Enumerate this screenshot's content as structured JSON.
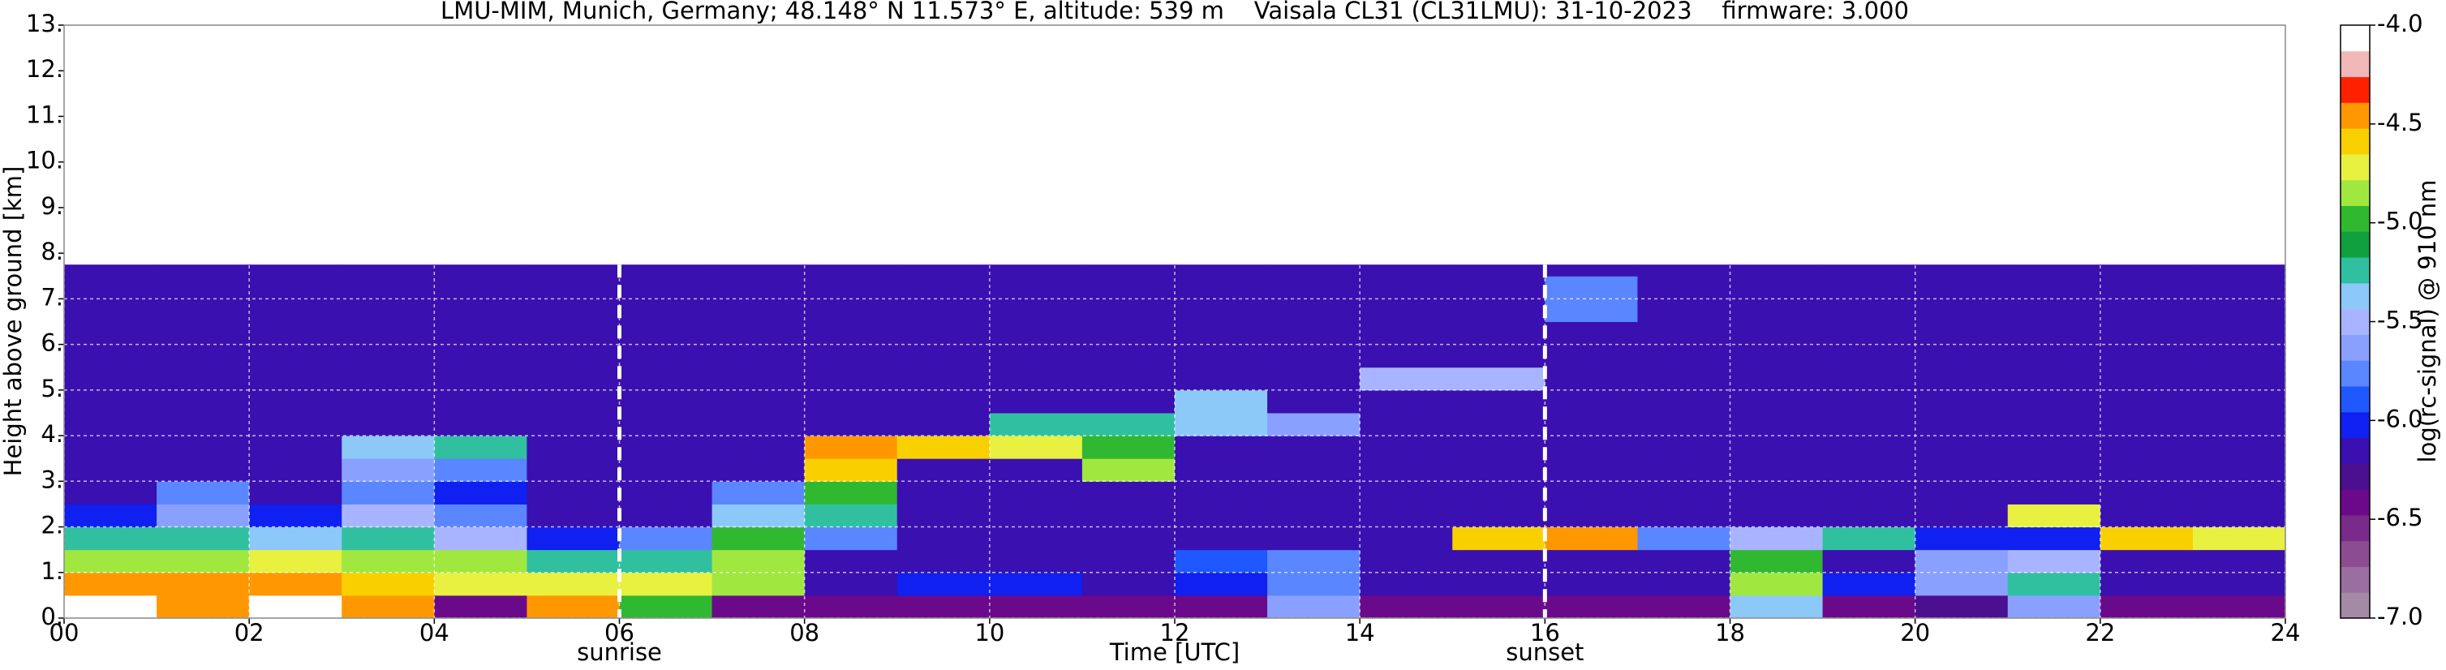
{
  "chart_data": {
    "type": "heatmap",
    "title": "LMU-MIM, Munich, Germany; 48.148° N 11.573° E, altitude: 539 m    Vaisala CL31 (CL31LMU): 31-10-2023    firmware: 3.000",
    "xlabel": "Time [UTC]",
    "ylabel": "Height above ground [km]",
    "colorbar_label": "log(rc-signal) @ 910 nm",
    "xlim": [
      0,
      24
    ],
    "xticks": [
      {
        "value": 0,
        "label": "00"
      },
      {
        "value": 2,
        "label": "02"
      },
      {
        "value": 4,
        "label": "04"
      },
      {
        "value": 6,
        "label": "06"
      },
      {
        "value": 8,
        "label": "08"
      },
      10,
      12,
      14,
      16,
      18,
      20,
      22,
      24
    ],
    "ylim": [
      0,
      13
    ],
    "yticks": [
      {
        "value": 0,
        "label": "0."
      },
      {
        "value": 1,
        "label": "1."
      },
      {
        "value": 2,
        "label": "2."
      },
      {
        "value": 3,
        "label": "3."
      },
      {
        "value": 4,
        "label": "4."
      },
      {
        "value": 5,
        "label": "5."
      },
      {
        "value": 6,
        "label": "6."
      },
      {
        "value": 7,
        "label": "7."
      },
      {
        "value": 8,
        "label": "8."
      },
      {
        "value": 9,
        "label": "9."
      },
      {
        "value": 10,
        "label": "10."
      },
      {
        "value": 11,
        "label": "11."
      },
      {
        "value": 12,
        "label": "12."
      },
      {
        "value": 13,
        "label": "13."
      }
    ],
    "zlim": [
      -7,
      -4
    ],
    "zticks": [
      {
        "value": -4,
        "label": "-4.0"
      },
      {
        "value": -4.5,
        "label": "-4.5"
      },
      {
        "value": -5,
        "label": "-5.0"
      },
      {
        "value": -5.5,
        "label": "-5.5"
      },
      {
        "value": -6,
        "label": "-6.0"
      },
      {
        "value": -6.5,
        "label": "-6.5"
      },
      {
        "value": -7,
        "label": "-7.0"
      }
    ],
    "colormap": [
      "#a48aa6",
      "#9a6e9e",
      "#8b4c92",
      "#7a2a88",
      "#6a0a8a",
      "#4a1090",
      "#3a10b0",
      "#1020f0",
      "#2058ff",
      "#5a86ff",
      "#8aa0ff",
      "#a8b4ff",
      "#8cc8f8",
      "#30c0a0",
      "#10a040",
      "#30b830",
      "#a0e840",
      "#e8f040",
      "#f8d000",
      "#ff9800",
      "#ff2000",
      "#f0b8b8",
      "#ffffff"
    ],
    "grid": true,
    "annotations": [
      {
        "text": "sunrise",
        "x": 6
      },
      {
        "text": "sunset",
        "x": 16
      }
    ],
    "x_edges": [
      0,
      1,
      2,
      3,
      4,
      5,
      6,
      7,
      8,
      9,
      10,
      11,
      12,
      13,
      14,
      15,
      16,
      17,
      18,
      19,
      20,
      21,
      22,
      23,
      24
    ],
    "y_edges": [
      0,
      0.5,
      1,
      1.5,
      2,
      2.5,
      3,
      3.5,
      4,
      4.5,
      5,
      5.5,
      6,
      6.5,
      7,
      7.5,
      7.75
    ],
    "z": [
      [
        -4.1,
        -4.4,
        -4.1,
        -4.4,
        -6.4,
        -4.5,
        -5.0,
        -6.4,
        -6.4,
        -6.4,
        -6.4,
        -6.4,
        -6.4,
        -5.6,
        -6.4,
        -6.4,
        -6.4,
        -6.4,
        -5.4,
        -6.4,
        -6.3,
        -5.6,
        -6.4,
        -6.4
      ],
      [
        -4.4,
        -4.5,
        -4.5,
        -4.6,
        -4.7,
        -4.7,
        -4.7,
        -4.8,
        -6.1,
        -6.0,
        -6.0,
        -6.1,
        -6.0,
        -5.7,
        -6.1,
        -6.1,
        -6.1,
        -6.1,
        -4.9,
        -6.0,
        -5.6,
        -5.2,
        -6.1,
        -6.1
      ],
      [
        -4.8,
        -4.8,
        -4.7,
        -4.9,
        -4.9,
        -5.3,
        -5.2,
        -4.9,
        -6.2,
        -6.1,
        -6.2,
        -6.2,
        -5.9,
        -5.8,
        -6.2,
        -6.2,
        -6.2,
        -6.2,
        -5.0,
        -6.2,
        -5.6,
        -5.5,
        -6.2,
        -6.2
      ],
      [
        -5.3,
        -5.2,
        -5.4,
        -5.2,
        -5.5,
        -6.0,
        -5.8,
        -5.0,
        -5.8,
        -6.1,
        -6.2,
        -6.2,
        -6.2,
        -6.2,
        -6.2,
        -4.6,
        -4.5,
        -5.8,
        -5.5,
        -5.3,
        -6.0,
        -6.0,
        -4.6,
        -4.7
      ],
      [
        -6.0,
        -5.6,
        -6.0,
        -5.5,
        -5.8,
        -6.2,
        -6.2,
        -5.4,
        -5.2,
        -6.2,
        -6.2,
        -6.2,
        -6.2,
        -6.2,
        -6.2,
        -6.2,
        -6.2,
        -6.2,
        -6.2,
        -6.2,
        -6.2,
        -4.7,
        -6.2,
        -6.2
      ],
      [
        -6.2,
        -5.8,
        -6.2,
        -5.8,
        -6.0,
        -6.2,
        -6.2,
        -5.8,
        -5.0,
        -6.2,
        -6.2,
        -6.2,
        -6.2,
        -6.2,
        -6.2,
        -6.2,
        -6.2,
        -6.2,
        -6.2,
        -6.2,
        -6.2,
        -6.2,
        -6.2,
        -6.2
      ],
      [
        -6.2,
        -6.2,
        -6.2,
        -5.6,
        -5.7,
        -6.2,
        -6.2,
        -6.2,
        -4.6,
        -6.2,
        -6.2,
        -4.9,
        -6.2,
        -6.2,
        -6.2,
        -6.2,
        -6.2,
        -6.2,
        -6.2,
        -6.2,
        -6.2,
        -6.2,
        -6.2,
        -6.2
      ],
      [
        -6.2,
        -6.2,
        -6.2,
        -5.4,
        -5.2,
        -6.2,
        -6.2,
        -6.2,
        -4.4,
        -4.6,
        -4.7,
        -5.0,
        -6.2,
        -6.2,
        -6.2,
        -6.2,
        -6.2,
        -6.2,
        -6.2,
        -6.2,
        -6.2,
        -6.2,
        -6.2,
        -6.2
      ],
      [
        -6.2,
        -6.2,
        -6.2,
        -6.2,
        -6.2,
        -6.2,
        -6.2,
        -6.2,
        -6.2,
        -6.2,
        -5.3,
        -5.3,
        -5.4,
        -5.6,
        -6.2,
        -6.2,
        -6.2,
        -6.2,
        -6.2,
        -6.2,
        -6.2,
        -6.2,
        -6.2,
        -6.2
      ],
      [
        -6.2,
        -6.2,
        -6.2,
        -6.2,
        -6.2,
        -6.2,
        -6.2,
        -6.2,
        -6.2,
        -6.2,
        -6.2,
        -6.2,
        -5.4,
        -6.2,
        -6.2,
        -6.2,
        -6.2,
        -6.2,
        -6.2,
        -6.2,
        -6.2,
        -6.2,
        -6.2,
        -6.2
      ],
      [
        -6.2,
        -6.2,
        -6.2,
        -6.2,
        -6.2,
        -6.2,
        -6.2,
        -6.2,
        -6.2,
        -6.2,
        -6.2,
        -6.2,
        -6.2,
        -6.2,
        -5.5,
        -5.5,
        -6.2,
        -6.2,
        -6.2,
        -6.2,
        -6.2,
        -6.2,
        -6.2,
        -6.2
      ],
      [
        -6.2,
        -6.2,
        -6.2,
        -6.2,
        -6.2,
        -6.2,
        -6.2,
        -6.2,
        -6.2,
        -6.2,
        -6.2,
        -6.2,
        -6.2,
        -6.2,
        -6.2,
        -6.2,
        -6.2,
        -6.2,
        -6.2,
        -6.2,
        -6.2,
        -6.2,
        -6.2,
        -6.2
      ],
      [
        -6.2,
        -6.2,
        -6.2,
        -6.2,
        -6.2,
        -6.2,
        -6.2,
        -6.2,
        -6.2,
        -6.2,
        -6.2,
        -6.2,
        -6.2,
        -6.2,
        -6.2,
        -6.2,
        -6.2,
        -6.2,
        -6.2,
        -6.2,
        -6.2,
        -6.2,
        -6.2,
        -6.2
      ],
      [
        -6.2,
        -6.2,
        -6.2,
        -6.2,
        -6.2,
        -6.2,
        -6.2,
        -6.2,
        -6.2,
        -6.2,
        -6.2,
        -6.2,
        -6.2,
        -6.2,
        -6.2,
        -6.2,
        -5.8,
        -6.2,
        -6.2,
        -6.2,
        -6.2,
        -6.2,
        -6.2,
        -6.2
      ],
      [
        -6.2,
        -6.2,
        -6.2,
        -6.2,
        -6.2,
        -6.2,
        -6.2,
        -6.2,
        -6.2,
        -6.2,
        -6.2,
        -6.2,
        -6.2,
        -6.2,
        -6.2,
        -6.2,
        -5.7,
        -6.2,
        -6.2,
        -6.2,
        -6.2,
        -6.2,
        -6.2,
        -6.2
      ],
      [
        -6.2,
        -6.2,
        -6.2,
        -6.2,
        -6.2,
        -6.2,
        -6.2,
        -6.2,
        -6.2,
        -6.2,
        -6.2,
        -6.2,
        -6.2,
        -6.2,
        -6.2,
        -6.2,
        -6.2,
        -6.2,
        -6.2,
        -6.2,
        -6.2,
        -6.2,
        -6.2,
        -6.2
      ]
    ]
  }
}
